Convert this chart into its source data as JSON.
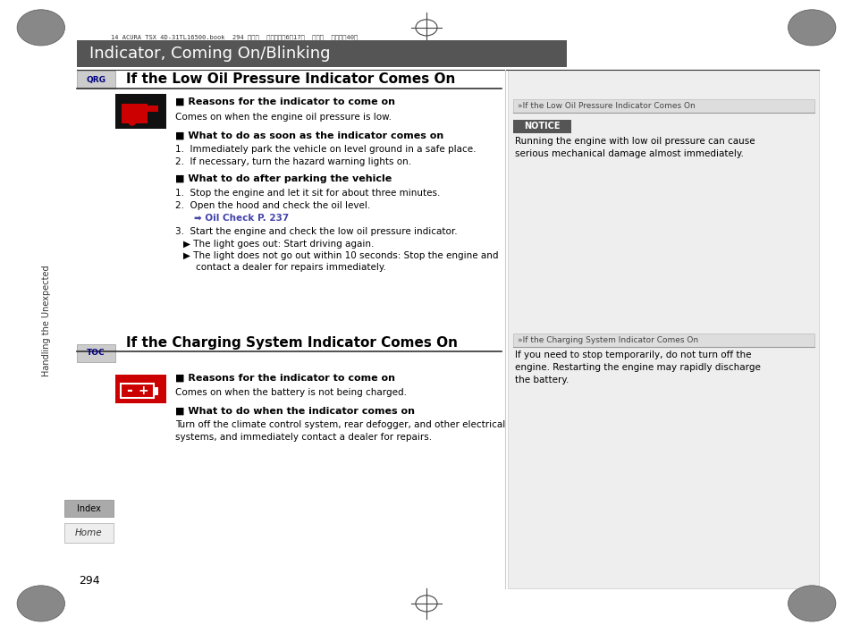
{
  "bg_color": "#ffffff",
  "header_bg": "#555555",
  "header_text": "Indicator, Coming On/Blinking",
  "header_text_color": "#ffffff",
  "header_font_size": 13,
  "top_meta": "14 ACURA TSX 4D-31TL16500.book  294 ページ  ２０１３年6月17日  月曜日  午前９時40分",
  "section1_title": "If the Low Oil Pressure Indicator Comes On",
  "section2_title": "If the Charging System Indicator Comes On",
  "qrg_label": "QRG",
  "toc_label": "TOC",
  "index_label": "Index",
  "home_label": "Home",
  "page_number": "294",
  "sidebar_text": "Handling the Unexpected",
  "right_section1_header": "»If the Low Oil Pressure Indicator Comes On",
  "right_section1_notice_text": "NOTICE",
  "right_section1_body": "Running the engine with low oil pressure can cause\nserious mechanical damage almost immediately.",
  "right_section2_header": "»If the Charging System Indicator Comes On",
  "right_section2_body": "If you need to stop temporarily, do not turn off the\nengine. Restarting the engine may rapidly discharge\nthe battery.",
  "notice_bg": "#555555",
  "notice_text_color": "#ffffff",
  "link_color": "#4444aa",
  "section_title_size": 11,
  "body_font_size": 7.5,
  "bold_font_size": 8
}
